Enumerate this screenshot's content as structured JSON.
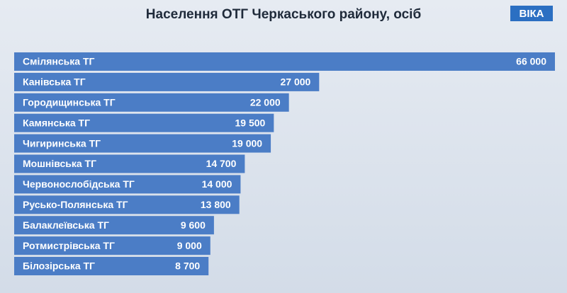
{
  "chart_data": {
    "type": "bar",
    "orientation": "horizontal",
    "title": "Населення ОТГ Черкаського району, осіб",
    "logo": "ВІКА",
    "categories": [
      "Смілянська ТГ",
      "Канівська ТГ",
      "Городищинська ТГ",
      "Камянська ТГ",
      "Чигиринська ТГ",
      "Мошнівська ТГ",
      "Червонослобідська ТГ",
      "Русько-Полянська ТГ",
      "Балаклеївська ТГ",
      "Ротмистрівська ТГ",
      "Білозірська ТГ"
    ],
    "values": [
      66000,
      27000,
      22000,
      19500,
      19000,
      14700,
      14000,
      13800,
      9600,
      9000,
      8700
    ],
    "value_labels": [
      "66 000",
      "27 000",
      "22 000",
      "19 500",
      "19 000",
      "14 700",
      "14 000",
      "13 800",
      "9 600",
      "9 000",
      "8 700"
    ],
    "color": "#4b7dc6"
  }
}
